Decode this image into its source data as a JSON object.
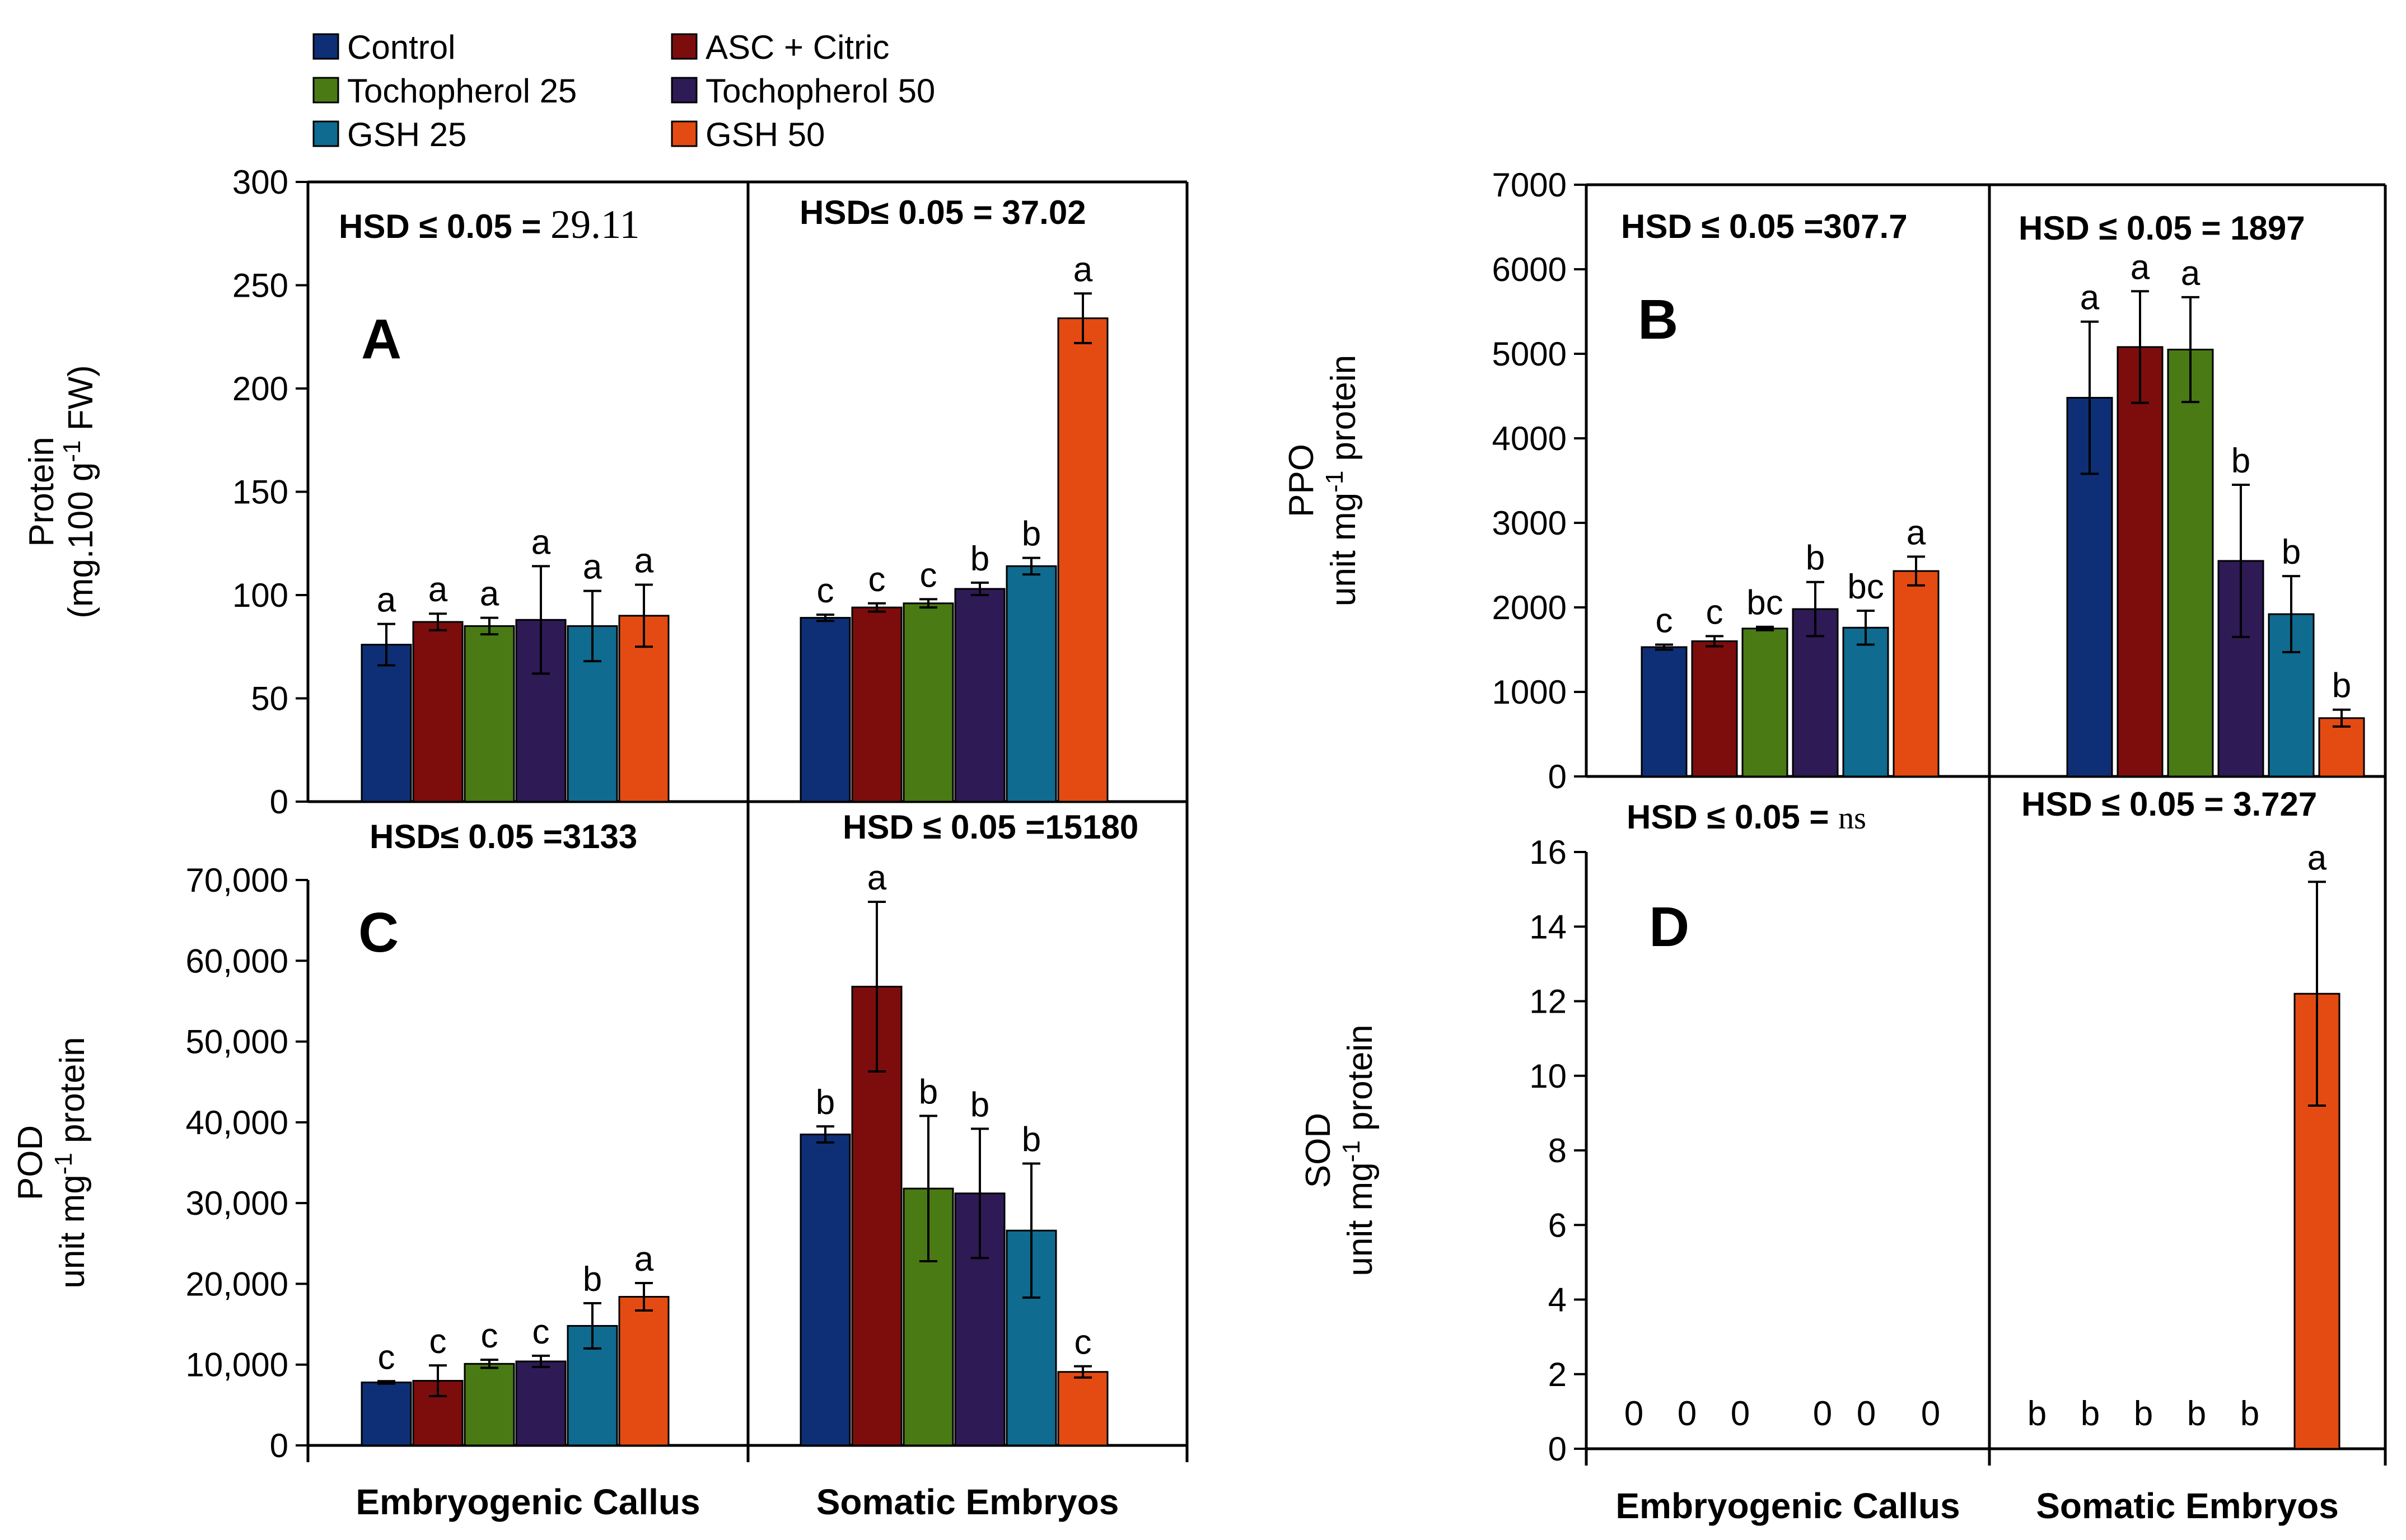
{
  "legend": [
    {
      "label": "Control",
      "color": "#0e2f75"
    },
    {
      "label": "ASC + Citric",
      "color": "#7d0d0d"
    },
    {
      "label": "Tochopherol 25",
      "color": "#4a7a14"
    },
    {
      "label": "Tochopherol 50",
      "color": "#2e1a55"
    },
    {
      "label": "GSH 25",
      "color": "#0f6b8f"
    },
    {
      "label": "GSH 50",
      "color": "#e44b12"
    }
  ],
  "chart_data": [
    {
      "type": "bar",
      "panel": "A",
      "ylabel": [
        "Protein",
        "(mg.100 g",
        "-1",
        " FW)"
      ],
      "ylim": [
        0,
        300
      ],
      "yticks": [
        "0",
        "50",
        "100",
        "150",
        "200",
        "250",
        "300"
      ],
      "categories": [
        "Embryogenic Callus",
        "Somatic Embryos"
      ],
      "hsd": [
        {
          "prefix": "HSD ≤ 0.05 = ",
          "value": "29.11"
        },
        {
          "prefix": "HSD≤ 0.05 = 37.02",
          "value": ""
        }
      ],
      "groups": [
        {
          "values": [
            76,
            87,
            85,
            88,
            85,
            90
          ],
          "errors": [
            10,
            4,
            4,
            26,
            17,
            15
          ],
          "letters": [
            "a",
            "a",
            "a",
            "a",
            "a",
            "a"
          ]
        },
        {
          "values": [
            89,
            94,
            96,
            103,
            114,
            234
          ],
          "errors": [
            1.5,
            2,
            2,
            3,
            4,
            12
          ],
          "letters": [
            "c",
            "c",
            "c",
            "b",
            "b",
            "a"
          ]
        }
      ]
    },
    {
      "type": "bar",
      "panel": "B",
      "ylabel": [
        "PPO",
        "unit mg",
        "-1",
        " protein"
      ],
      "ylim": [
        0,
        7000
      ],
      "yticks": [
        "0",
        "1000",
        "2000",
        "3000",
        "4000",
        "5000",
        "6000",
        "7000"
      ],
      "categories": [
        "Embryogenic Callus",
        "Somatic Embryos"
      ],
      "hsd": [
        {
          "prefix": "HSD ≤ 0.05 =307.7",
          "value": ""
        },
        {
          "prefix": "HSD ≤ 0.05 = 1897",
          "value": ""
        }
      ],
      "groups": [
        {
          "values": [
            1530,
            1600,
            1750,
            1980,
            1760,
            2430
          ],
          "errors": [
            30,
            60,
            20,
            320,
            200,
            170
          ],
          "letters": [
            "c",
            "c",
            "bc",
            "b",
            "bc",
            "a"
          ]
        },
        {
          "values": [
            4480,
            5080,
            5050,
            2550,
            1920,
            690
          ],
          "errors": [
            900,
            660,
            620,
            900,
            450,
            100
          ],
          "letters": [
            "a",
            "a",
            "a",
            "b",
            "b",
            "b"
          ]
        }
      ]
    },
    {
      "type": "bar",
      "panel": "C",
      "ylabel": [
        "POD",
        "unit mg",
        "-1",
        " protein"
      ],
      "ylim": [
        0,
        70000
      ],
      "yticks": [
        "0",
        "10,000",
        "20,000",
        "30,000",
        "40,000",
        "50,000",
        "60,000",
        "70,000"
      ],
      "categories": [
        "Embryogenic Callus",
        "Somatic Embryos"
      ],
      "hsd": [
        {
          "prefix": "HSD≤ 0.05 =3133",
          "value": ""
        },
        {
          "prefix": "HSD ≤ 0.05 =15180",
          "value": ""
        }
      ],
      "groups": [
        {
          "values": [
            7800,
            8000,
            10100,
            10400,
            14800,
            18400
          ],
          "errors": [
            150,
            1900,
            500,
            700,
            2800,
            1700
          ],
          "letters": [
            "c",
            "c",
            "c",
            "c",
            "b",
            "a"
          ]
        },
        {
          "values": [
            38500,
            56800,
            31800,
            31200,
            26600,
            9100
          ],
          "errors": [
            1000,
            10500,
            9000,
            8000,
            8300,
            700
          ],
          "letters": [
            "b",
            "a",
            "b",
            "b",
            "b",
            "c"
          ]
        }
      ]
    },
    {
      "type": "bar",
      "panel": "D",
      "ylabel": [
        "SOD",
        "unit mg",
        "-1",
        " protein"
      ],
      "ylim": [
        0,
        16
      ],
      "yticks": [
        "0",
        "2",
        "4",
        "6",
        "8",
        "10",
        "12",
        "14",
        "16"
      ],
      "categories": [
        "Embryogenic Callus",
        "Somatic Embryos"
      ],
      "hsd": [
        {
          "prefix": "HSD ≤ 0.05 = ",
          "value": "ns"
        },
        {
          "prefix": "HSD ≤ 0.05 = 3.727",
          "value": ""
        }
      ],
      "groups": [
        {
          "values": [
            0,
            0,
            0,
            0,
            0,
            0
          ],
          "errors": [
            0,
            0,
            0,
            0,
            0,
            0
          ],
          "letters": [
            "0",
            "0",
            "0",
            "0",
            "0",
            "0"
          ]
        },
        {
          "values": [
            0,
            0,
            0,
            0,
            0,
            12.2
          ],
          "errors": [
            0,
            0,
            0,
            0,
            0,
            3
          ],
          "letters": [
            "b",
            "b",
            "b",
            "b",
            "b",
            "a"
          ]
        }
      ]
    }
  ]
}
